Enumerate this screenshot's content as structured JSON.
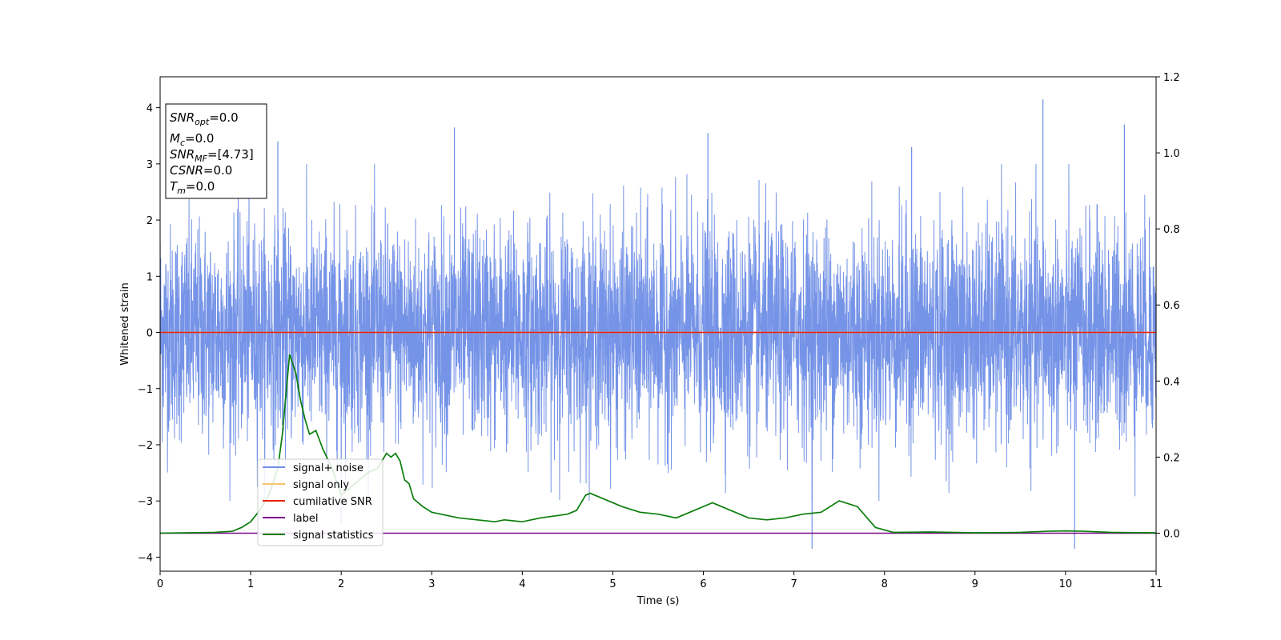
{
  "chart_data": {
    "type": "line",
    "xlabel": "Time (s)",
    "ylabel_left": "Whitened strain",
    "ylabel_right": "",
    "xlim": [
      0,
      11
    ],
    "ylim_left": [
      -4.25,
      4.55
    ],
    "ylim_right": [
      -0.1,
      1.2
    ],
    "x_ticks": [
      0,
      1,
      2,
      3,
      4,
      5,
      6,
      7,
      8,
      9,
      10,
      11
    ],
    "y_ticks_left": [
      -4,
      -3,
      -2,
      -1,
      0,
      1,
      2,
      3,
      4
    ],
    "y_ticks_right": [
      0.0,
      0.2,
      0.4,
      0.6,
      0.8,
      1.0,
      1.2
    ],
    "y_tick_labels_left": [
      "−4",
      "−3",
      "−2",
      "−1",
      "0",
      "1",
      "2",
      "3",
      "4"
    ],
    "y_tick_labels_right": [
      "0.0",
      "0.2",
      "0.4",
      "0.6",
      "0.8",
      "1.0",
      "1.2"
    ],
    "legend_position": "lower-left",
    "grid": false,
    "info_box": {
      "line1": {
        "var": "SNR",
        "sub": "opt",
        "value": "=0.0"
      },
      "line2": {
        "var": "M",
        "sub": "c",
        "value": "=0.0"
      },
      "line3": {
        "var": "SNR",
        "sub": "MF",
        "value": "=[4.73]"
      },
      "line4": {
        "var": "CSNR",
        "sub": "",
        "value": "=0.0"
      },
      "line5": {
        "var": "T",
        "sub": "m",
        "value": "=0.0"
      }
    },
    "series": [
      {
        "name": "signal+ noise",
        "axis": "left",
        "color": "#6f8ee6",
        "description_of_values": "whitened noise fluctuating roughly between -3.8 and 4.2 across 0-11 s",
        "envelope_peaks": [
          [
            0.0,
            1.6
          ],
          [
            1.3,
            3.4
          ],
          [
            3.25,
            3.65
          ],
          [
            6.05,
            3.55
          ],
          [
            8.3,
            3.3
          ],
          [
            9.75,
            4.15
          ],
          [
            10.65,
            3.7
          ],
          [
            7.2,
            -3.85
          ],
          [
            10.1,
            -3.85
          ],
          [
            2.0,
            -3.4
          ]
        ]
      },
      {
        "name": "signal only",
        "axis": "left",
        "color": "#f5c46a",
        "x": [
          0,
          11
        ],
        "y": [
          0,
          0
        ]
      },
      {
        "name": "cumilative SNR",
        "axis": "left",
        "color": "#e8200a",
        "x": [
          0,
          11
        ],
        "y": [
          0,
          0
        ]
      },
      {
        "name": "label",
        "axis": "right",
        "color": "#7b0a8c",
        "x": [
          0,
          11
        ],
        "y": [
          0,
          0
        ]
      },
      {
        "name": "signal statistics",
        "axis": "right",
        "color": "#0a7d0a",
        "x": [
          0.0,
          0.3,
          0.6,
          0.8,
          0.9,
          1.0,
          1.1,
          1.2,
          1.3,
          1.35,
          1.43,
          1.5,
          1.55,
          1.6,
          1.65,
          1.72,
          1.8,
          1.9,
          2.0,
          2.1,
          2.2,
          2.3,
          2.4,
          2.5,
          2.55,
          2.6,
          2.65,
          2.7,
          2.75,
          2.8,
          2.9,
          3.0,
          3.1,
          3.3,
          3.5,
          3.7,
          3.8,
          4.0,
          4.2,
          4.5,
          4.6,
          4.7,
          4.75,
          4.85,
          5.0,
          5.1,
          5.3,
          5.5,
          5.7,
          5.9,
          6.1,
          6.2,
          6.3,
          6.5,
          6.7,
          6.9,
          7.1,
          7.3,
          7.5,
          7.7,
          7.9,
          8.1,
          8.5,
          9.0,
          9.5,
          9.8,
          10.0,
          10.2,
          10.5,
          11.0
        ],
        "y": [
          0.0,
          0.001,
          0.002,
          0.005,
          0.015,
          0.03,
          0.06,
          0.1,
          0.17,
          0.26,
          0.47,
          0.42,
          0.35,
          0.3,
          0.26,
          0.27,
          0.22,
          0.17,
          0.1,
          0.12,
          0.14,
          0.16,
          0.17,
          0.21,
          0.2,
          0.21,
          0.19,
          0.14,
          0.13,
          0.09,
          0.07,
          0.055,
          0.05,
          0.04,
          0.035,
          0.03,
          0.035,
          0.03,
          0.04,
          0.05,
          0.06,
          0.1,
          0.105,
          0.095,
          0.08,
          0.07,
          0.055,
          0.05,
          0.04,
          0.06,
          0.08,
          0.07,
          0.06,
          0.04,
          0.035,
          0.04,
          0.05,
          0.055,
          0.085,
          0.07,
          0.015,
          0.002,
          0.003,
          0.001,
          0.002,
          0.005,
          0.006,
          0.005,
          0.002,
          0.001
        ]
      }
    ]
  }
}
